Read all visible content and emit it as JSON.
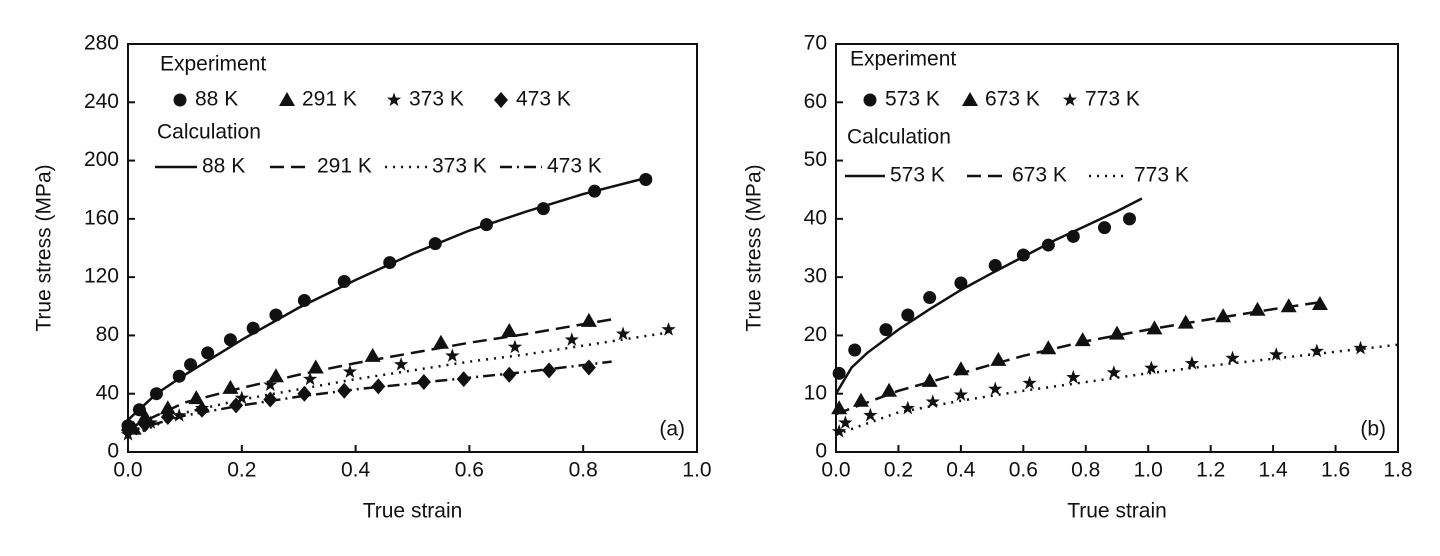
{
  "chart_data": [
    {
      "type": "line",
      "x_label": "True strain",
      "y_label": "True stress (MPa)",
      "panel_label": "(a)",
      "xlim": [
        0,
        1
      ],
      "ylim": [
        0,
        280
      ],
      "xticks": [
        {
          "value": 0,
          "label": "0.0"
        },
        0.2,
        0.4,
        0.6,
        0.8,
        {
          "value": 1,
          "label": "1.0"
        }
      ],
      "yticks": [
        0,
        40,
        80,
        120,
        160,
        200,
        240,
        280
      ],
      "experiment": {
        "title": "Experiment",
        "series": [
          {
            "name": "88 K",
            "marker": "circle",
            "color": "#111111",
            "x": [
              0,
              0.02,
              0.05,
              0.09,
              0.11,
              0.14,
              0.18,
              0.22,
              0.26,
              0.31,
              0.38,
              0.46,
              0.54,
              0.63,
              0.73,
              0.82,
              0.91
            ],
            "values": [
              18,
              29,
              40,
              52,
              60,
              68,
              77,
              85,
              94,
              104,
              117,
              130,
              143,
              156,
              167,
              179,
              187
            ]
          },
          {
            "name": "291 K",
            "marker": "triangle",
            "color": "#111111",
            "x": [
              0.01,
              0.03,
              0.07,
              0.12,
              0.18,
              0.26,
              0.33,
              0.43,
              0.55,
              0.67,
              0.81
            ],
            "values": [
              16,
              24,
              30,
              37,
              44,
              52,
              58,
              66,
              75,
              83,
              90
            ]
          },
          {
            "name": "373 K",
            "marker": "star",
            "color": "#111111",
            "x": [
              0,
              0.04,
              0.09,
              0.13,
              0.2,
              0.25,
              0.32,
              0.39,
              0.48,
              0.57,
              0.68,
              0.78,
              0.87,
              0.95
            ],
            "values": [
              12,
              20,
              25,
              30,
              37,
              46,
              50,
              55,
              60,
              66,
              72,
              77,
              81,
              84
            ]
          },
          {
            "name": "473 K",
            "marker": "diamond",
            "color": "#111111",
            "x": [
              0,
              0.03,
              0.07,
              0.13,
              0.19,
              0.25,
              0.31,
              0.38,
              0.44,
              0.52,
              0.59,
              0.67,
              0.74,
              0.81
            ],
            "values": [
              15,
              19,
              24,
              29,
              32,
              36,
              40,
              42,
              45,
              48,
              50,
              53,
              56,
              58
            ]
          }
        ]
      },
      "calculation": {
        "title": "Calculation",
        "series": [
          {
            "name": "88 K",
            "dash": "solid",
            "color": "#111111",
            "x": [
              0,
              0.05,
              0.1,
              0.2,
              0.3,
              0.4,
              0.5,
              0.6,
              0.7,
              0.8,
              0.92
            ],
            "values": [
              22,
              40,
              53,
              77,
              99,
              118,
              136,
              152,
              165,
              177,
              189
            ]
          },
          {
            "name": "291 K",
            "dash": "dashed",
            "color": "#111111",
            "x": [
              0,
              0.1,
              0.2,
              0.3,
              0.4,
              0.5,
              0.6,
              0.7,
              0.85
            ],
            "values": [
              16,
              34,
              44,
              53,
              61,
              68,
              75,
              81,
              91
            ]
          },
          {
            "name": "373 K",
            "dash": "dotted",
            "color": "#111111",
            "x": [
              0,
              0.1,
              0.2,
              0.3,
              0.4,
              0.5,
              0.6,
              0.7,
              0.8,
              0.95
            ],
            "values": [
              10,
              27,
              36,
              43,
              50,
              56,
              62,
              67,
              73,
              82
            ]
          },
          {
            "name": "473 K",
            "dash": "dashdot",
            "color": "#111111",
            "x": [
              0,
              0.1,
              0.2,
              0.3,
              0.4,
              0.5,
              0.6,
              0.7,
              0.85
            ],
            "values": [
              14,
              25,
              32,
              38,
              43,
              47,
              51,
              55,
              62
            ]
          }
        ]
      }
    },
    {
      "type": "line",
      "x_label": "True strain",
      "y_label": "True stress (MPa)",
      "panel_label": "(b)",
      "xlim": [
        0,
        1.8
      ],
      "ylim": [
        0,
        70
      ],
      "xticks": [
        {
          "value": 0,
          "label": "0.0"
        },
        0.2,
        0.4,
        0.6,
        0.8,
        {
          "value": 1,
          "label": "1.0"
        },
        1.2,
        1.4,
        1.6,
        1.8
      ],
      "yticks": [
        0,
        10,
        20,
        30,
        40,
        50,
        60,
        70
      ],
      "experiment": {
        "title": "Experiment",
        "series": [
          {
            "name": "573 K",
            "marker": "circle",
            "color": "#111111",
            "x": [
              0.01,
              0.06,
              0.16,
              0.23,
              0.3,
              0.4,
              0.51,
              0.6,
              0.68,
              0.76,
              0.86,
              0.94
            ],
            "values": [
              13.5,
              17.5,
              21,
              23.5,
              26.5,
              29,
              32,
              33.8,
              35.5,
              37,
              38.5,
              40
            ]
          },
          {
            "name": "673 K",
            "marker": "triangle",
            "color": "#111111",
            "x": [
              0.01,
              0.08,
              0.17,
              0.3,
              0.4,
              0.52,
              0.68,
              0.79,
              0.9,
              1.02,
              1.12,
              1.24,
              1.35,
              1.45,
              1.55
            ],
            "values": [
              7.5,
              8.8,
              10.5,
              12.2,
              14.2,
              15.8,
              17.8,
              19.2,
              20.3,
              21.2,
              22.2,
              23.3,
              24.4,
              25,
              25.4
            ]
          },
          {
            "name": "773 K",
            "marker": "star",
            "color": "#111111",
            "x": [
              0.01,
              0.03,
              0.11,
              0.23,
              0.31,
              0.4,
              0.51,
              0.62,
              0.76,
              0.89,
              1.01,
              1.14,
              1.27,
              1.41,
              1.54,
              1.68
            ],
            "values": [
              3.5,
              5,
              6.3,
              7.5,
              8.6,
              9.8,
              10.8,
              11.8,
              12.8,
              13.6,
              14.4,
              15.2,
              16.1,
              16.7,
              17.3,
              17.8
            ]
          }
        ]
      },
      "calculation": {
        "title": "Calculation",
        "series": [
          {
            "name": "573 K",
            "dash": "solid",
            "color": "#111111",
            "x": [
              0,
              0.05,
              0.1,
              0.2,
              0.3,
              0.4,
              0.5,
              0.6,
              0.7,
              0.8,
              0.9,
              0.98
            ],
            "values": [
              10,
              14.5,
              17,
              21,
              24.5,
              27.8,
              30.7,
              33.5,
              36.3,
              38.8,
              41.3,
              43.5
            ]
          },
          {
            "name": "673 K",
            "dash": "dashed",
            "color": "#111111",
            "x": [
              0,
              0.2,
              0.4,
              0.6,
              0.8,
              1,
              1.2,
              1.4,
              1.55
            ],
            "values": [
              6.5,
              10.5,
              13.5,
              16.5,
              19,
              21,
              22.8,
              24.5,
              25.7
            ]
          },
          {
            "name": "773 K",
            "dash": "dotted",
            "color": "#111111",
            "x": [
              0,
              0.2,
              0.4,
              0.6,
              0.8,
              1,
              1.2,
              1.4,
              1.6,
              1.8
            ],
            "values": [
              3,
              6.8,
              8.8,
              10.5,
              12,
              13.5,
              14.8,
              16,
              17.2,
              18.4
            ]
          }
        ]
      }
    }
  ]
}
